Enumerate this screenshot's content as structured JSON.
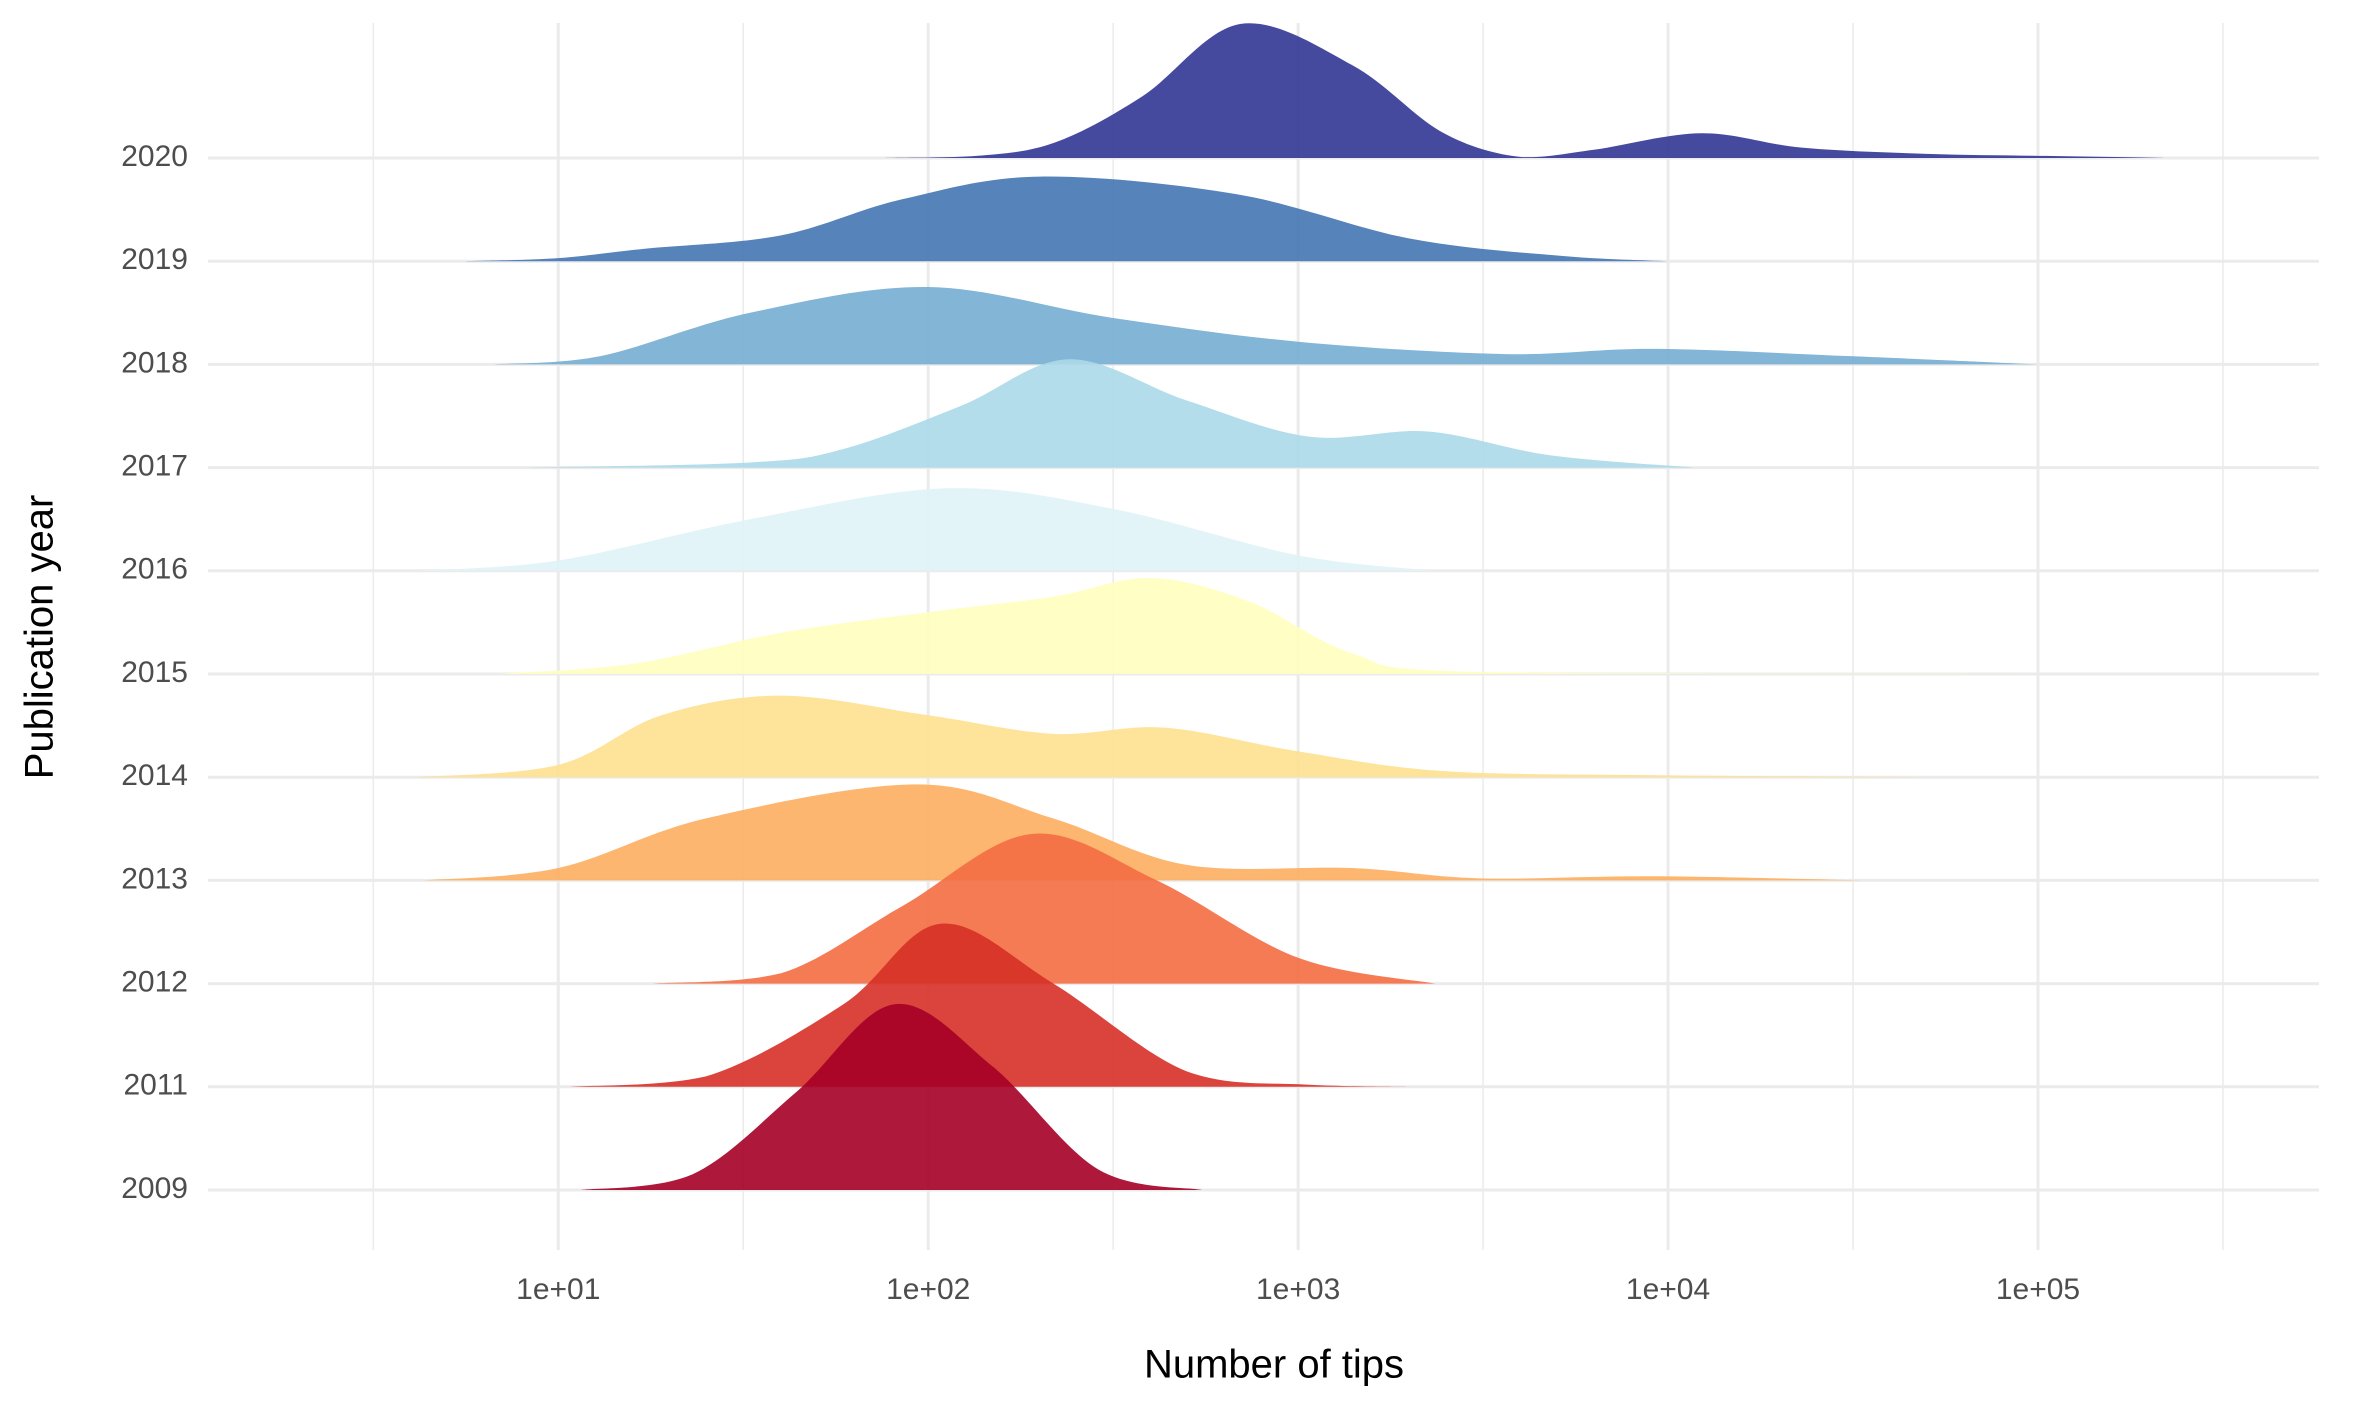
{
  "chart_data": {
    "type": "ridgeline",
    "x_label": "Number of tips",
    "y_label": "Publication year",
    "x_log": true,
    "grid": true,
    "minor_grid": true,
    "xlim": [
      1.13,
      575000
    ],
    "xticks": [
      {
        "value": 10,
        "label": "1e+01"
      },
      {
        "value": 100,
        "label": "1e+02"
      },
      {
        "value": 1000,
        "label": "1e+03"
      },
      {
        "value": 10000,
        "label": "1e+04"
      },
      {
        "value": 100000,
        "label": "1e+05"
      }
    ],
    "series": [
      {
        "name": "2020",
        "color": "#313695",
        "x": [
          76,
          135,
          220,
          380,
          700,
          1400,
          2450,
          4000,
          6300,
          12300,
          23000,
          50000,
          105000,
          225000
        ],
        "values": [
          0,
          0.02,
          0.15,
          0.6,
          1.3,
          0.9,
          0.25,
          0.01,
          0.08,
          0.24,
          0.1,
          0.04,
          0.02,
          0
        ]
      },
      {
        "name": "2019",
        "color": "#4575b4",
        "x": [
          5.6,
          10,
          17,
          40,
          85,
          200,
          680,
          2000,
          5200,
          10000
        ],
        "values": [
          0,
          0.03,
          0.12,
          0.25,
          0.6,
          0.82,
          0.65,
          0.22,
          0.05,
          0
        ]
      },
      {
        "name": "2018",
        "color": "#74add1",
        "x": [
          6.7,
          13,
          33,
          100,
          316,
          1000,
          3600,
          9100,
          31000,
          100000
        ],
        "values": [
          0,
          0.08,
          0.5,
          0.75,
          0.45,
          0.22,
          0.1,
          0.15,
          0.08,
          0
        ]
      },
      {
        "name": "2017",
        "color": "#abd9e9",
        "x": [
          8.2,
          33,
          59,
          123,
          240,
          500,
          1070,
          2240,
          4800,
          11800
        ],
        "values": [
          0,
          0.05,
          0.18,
          0.6,
          1.05,
          0.65,
          0.3,
          0.35,
          0.12,
          0
        ]
      },
      {
        "name": "2016",
        "color": "#e0f3f8",
        "x": [
          4.1,
          10,
          33,
          112,
          316,
          1000,
          2350
        ],
        "values": [
          0,
          0.1,
          0.5,
          0.8,
          0.6,
          0.15,
          0
        ]
      },
      {
        "name": "2015",
        "color": "#ffffbf",
        "x": [
          6.8,
          16,
          40,
          100,
          218,
          400,
          740,
          1400,
          3000,
          95000
        ],
        "values": [
          0,
          0.1,
          0.4,
          0.6,
          0.75,
          0.93,
          0.7,
          0.2,
          0.02,
          0
        ]
      },
      {
        "name": "2014",
        "color": "#fee090",
        "x": [
          4.1,
          10,
          19,
          40,
          100,
          218,
          435,
          1000,
          2450,
          9100,
          50000
        ],
        "values": [
          0,
          0.12,
          0.6,
          0.79,
          0.6,
          0.42,
          0.48,
          0.25,
          0.06,
          0.02,
          0
        ]
      },
      {
        "name": "2013",
        "color": "#fdae61",
        "x": [
          4.3,
          10,
          25,
          93,
          218,
          500,
          1400,
          3100,
          9100,
          34000
        ],
        "values": [
          0,
          0.12,
          0.6,
          0.93,
          0.6,
          0.15,
          0.12,
          0.02,
          0.04,
          0
        ]
      },
      {
        "name": "2012",
        "color": "#f46d43",
        "x": [
          18,
          40,
          85,
          190,
          415,
          1000,
          2350
        ],
        "values": [
          0,
          0.1,
          0.75,
          1.45,
          1,
          0.25,
          0
        ]
      },
      {
        "name": "2011",
        "color": "#d73027",
        "x": [
          10.7,
          25,
          59,
          108,
          218,
          500,
          1070,
          2150
        ],
        "values": [
          0,
          0.1,
          0.8,
          1.58,
          1,
          0.15,
          0.02,
          0
        ]
      },
      {
        "name": "2009",
        "color": "#a50026",
        "x": [
          11.5,
          23,
          44,
          81,
          149,
          288,
          550
        ],
        "values": [
          0,
          0.15,
          0.95,
          1.8,
          1.2,
          0.2,
          0
        ]
      }
    ]
  }
}
